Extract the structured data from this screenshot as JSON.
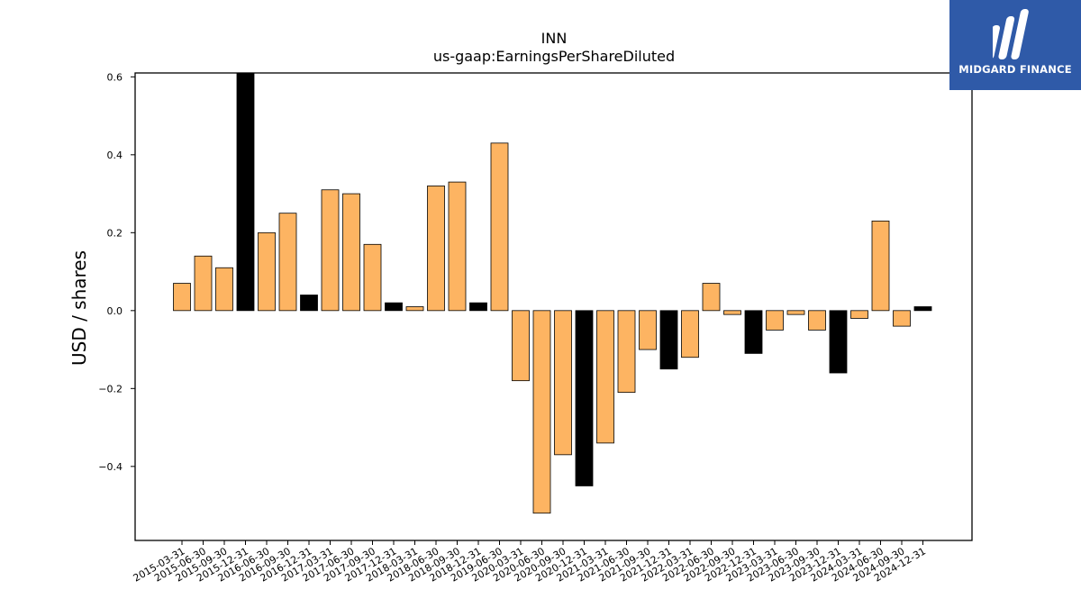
{
  "chart_data": {
    "type": "bar",
    "title": "INN",
    "subtitle": "us-gaap:EarningsPerShareDiluted",
    "xlabel": "",
    "ylabel": "USD / shares",
    "ylim": [
      -0.59,
      0.61
    ],
    "yticks": [
      0.6,
      0.4,
      0.2,
      0.0,
      -0.2,
      -0.4
    ],
    "ytick_labels": [
      "0.6",
      "0.4",
      "0.2",
      "0.0",
      "−0.2",
      "−0.4"
    ],
    "grid": false,
    "legend": "none",
    "colors": {
      "quarterly": "#fdb462",
      "annual": "#000000",
      "edge": "#000000"
    },
    "tick_labels": [
      "2015-03-31",
      "2015-06-30",
      "2015-09-30",
      "2015-12-31",
      "2016-06-30",
      "2016-09-30",
      "2016-12-31",
      "2017-03-31",
      "2017-06-30",
      "2017-09-30",
      "2017-12-31",
      "2018-03-31",
      "2018-06-30",
      "2018-09-30",
      "2018-12-31",
      "2019-06-30",
      "2020-03-31",
      "2020-06-30",
      "2020-09-30",
      "2020-12-31",
      "2021-03-31",
      "2021-06-30",
      "2021-09-30",
      "2021-12-31",
      "2022-03-31",
      "2022-06-30",
      "2022-09-30",
      "2022-12-31",
      "2023-03-31",
      "2023-06-30",
      "2023-09-30",
      "2023-12-31",
      "2024-03-31",
      "2024-06-30",
      "2024-09-30",
      "2024-12-31"
    ],
    "values": [
      0.07,
      0.14,
      0.11,
      0.61,
      0.2,
      0.25,
      0.04,
      0.31,
      0.3,
      0.17,
      0.02,
      0.01,
      0.32,
      0.33,
      0.02,
      0.43,
      -0.18,
      -0.52,
      -0.37,
      -0.45,
      -0.34,
      -0.21,
      -0.1,
      -0.15,
      -0.12,
      0.07,
      -0.01,
      -0.11,
      -0.05,
      -0.01,
      -0.05,
      -0.16,
      -0.02,
      0.23,
      -0.04,
      0.01
    ],
    "annual": [
      false,
      false,
      false,
      true,
      false,
      false,
      true,
      false,
      false,
      false,
      true,
      false,
      false,
      false,
      true,
      false,
      false,
      false,
      false,
      true,
      false,
      false,
      false,
      true,
      false,
      false,
      false,
      true,
      false,
      false,
      false,
      true,
      false,
      false,
      false,
      true
    ]
  },
  "logo": {
    "name": "MIDGARD FINANCE",
    "icon": "midgard-logo-icon"
  }
}
